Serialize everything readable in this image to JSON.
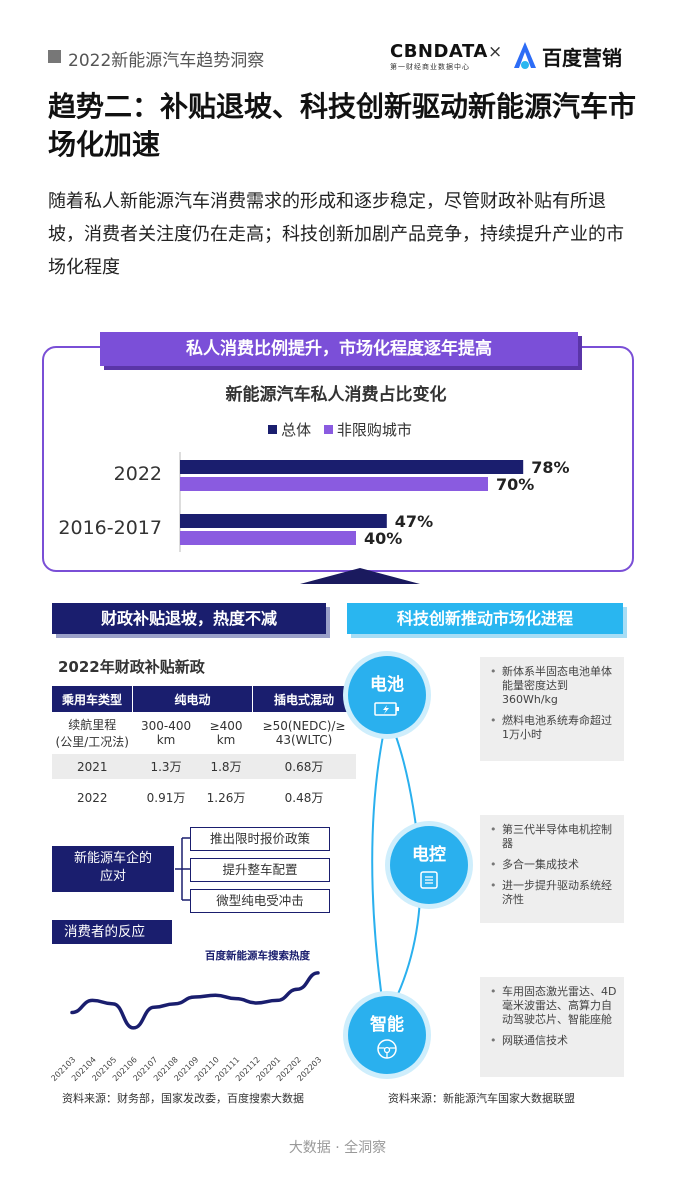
{
  "header": {
    "report_title": "2022新能源汽车趋势洞察",
    "brand_cbndata": "CBNDATA",
    "brand_cbndata_sub": "第一财经商业数据中心",
    "brand_separator": "×",
    "brand_baidu": "百度营销"
  },
  "title": "趋势二：补贴退坡、科技创新驱动新能源汽车市场化加速",
  "intro": "随着私人新能源汽车消费需求的形成和逐步稳定，尽管财政补贴有所退坡，消费者关注度仍在走高；科技创新加剧产品竞争，持续提升产业的市场化程度",
  "private_panel": {
    "banner": "私人消费比例提升，市场化程度逐年提高",
    "chart_title": "新能源汽车私人消费占比变化"
  },
  "chart_data": {
    "type": "bar",
    "orientation": "horizontal",
    "title": "新能源汽车私人消费占比变化",
    "categories": [
      "2022",
      "2016-2017"
    ],
    "series": [
      {
        "name": "总体",
        "values": [
          78,
          47
        ],
        "labels": [
          "78%",
          "47%"
        ],
        "color": "#1a1e6e"
      },
      {
        "name": "非限购城市",
        "values": [
          70,
          40
        ],
        "labels": [
          "70%",
          "40%"
        ],
        "color": "#8a5be0"
      }
    ],
    "xlim": [
      0,
      100
    ],
    "legend": "top-center",
    "grid": false
  },
  "subsidy": {
    "banner": "财政补贴退坡，热度不减",
    "table_title": "2022年财政补贴新政",
    "columns": [
      "乘用车类型",
      "纯电动",
      "插电式混动"
    ],
    "rows": [
      [
        "续航里程\n(公里/工况法)",
        "300-400\nkm",
        "≥400\nkm",
        "≥50(NEDC)/≥\n43(WLTC)"
      ],
      [
        "2021",
        "1.3万",
        "1.8万",
        "0.68万"
      ],
      [
        "2022",
        "0.91万",
        "1.26万",
        "0.48万"
      ]
    ],
    "response_label": "新能源车企的\n应对",
    "responses": [
      "推出限时报价政策",
      "提升整车配置",
      "微型纯电受冲击"
    ],
    "consumer_label": "消费者的反应",
    "search_label": "百度新能源车搜索热度",
    "search_months": [
      "202103",
      "202104",
      "202105",
      "202106",
      "202107",
      "202108",
      "202109",
      "202110",
      "202111",
      "202112",
      "202201",
      "202202",
      "202203"
    ],
    "search_index": [
      46,
      60,
      56,
      28,
      52,
      56,
      64,
      66,
      62,
      57,
      60,
      73,
      92
    ],
    "source": "资料来源：财务部，国家发改委，百度搜索大数据"
  },
  "tech": {
    "banner": "科技创新推动市场化进程",
    "nodes": [
      {
        "label": "电池",
        "icon": "battery-icon",
        "points": [
          "新体系半固态电池单体能量密度达到360Wh/kg",
          "燃料电池系统寿命超过1万小时"
        ]
      },
      {
        "label": "电控",
        "icon": "control-chip-icon",
        "points": [
          "第三代半导体电机控制器",
          "多合一集成技术",
          "进一步提升驱动系统经济性"
        ]
      },
      {
        "label": "智能",
        "icon": "steering-wheel-icon",
        "points": [
          "车用固态激光雷达、4D毫米波雷达、高算力自动驾驶芯片、智能座舱",
          "网联通信技术"
        ]
      }
    ],
    "source": "资料来源：新能源汽车国家大数据联盟"
  },
  "footer": "大数据 · 全洞察",
  "colors": {
    "navy": "#1a1e6e",
    "purple": "#7b4fd8",
    "light_purple": "#8a5be0",
    "cyan": "#29b6f0"
  }
}
